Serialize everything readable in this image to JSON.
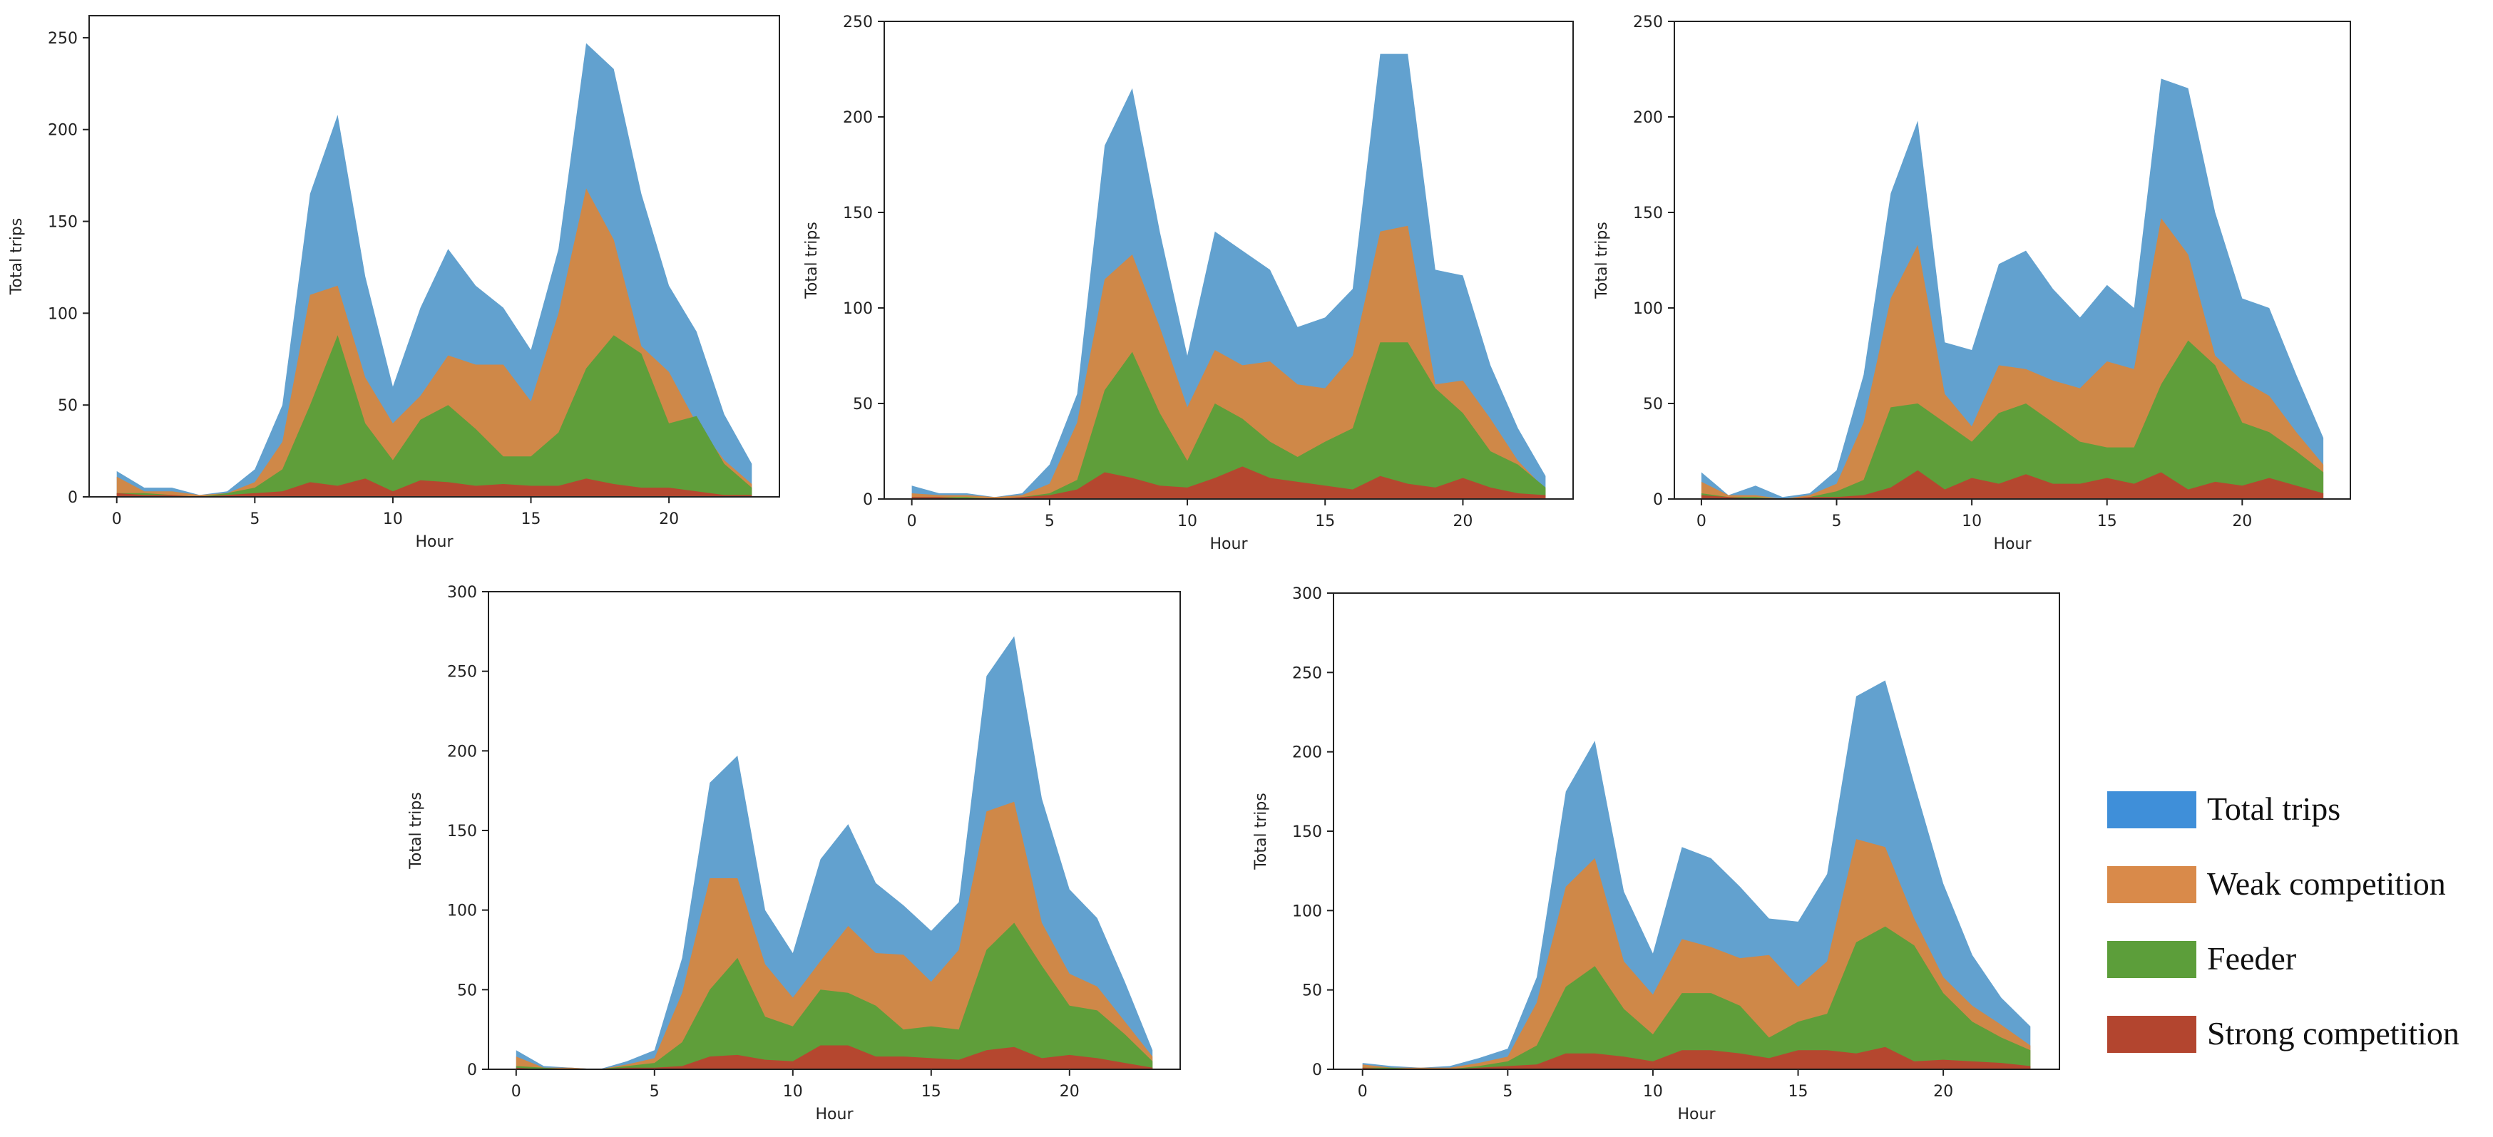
{
  "chart_data": [
    {
      "type": "area",
      "xlabel": "Hour",
      "ylabel": "Total trips",
      "x": [
        0,
        1,
        2,
        3,
        4,
        5,
        6,
        7,
        8,
        9,
        10,
        11,
        12,
        13,
        14,
        15,
        16,
        17,
        18,
        19,
        20,
        21,
        22,
        23
      ],
      "xticks": [
        0,
        5,
        10,
        15,
        20
      ],
      "yticks": [
        0,
        50,
        100,
        150,
        200,
        250
      ],
      "ylim": [
        0,
        262
      ],
      "xlim": [
        -1,
        24
      ],
      "series": [
        {
          "name": "Total trips",
          "values": [
            14,
            5,
            5,
            1,
            3,
            15,
            50,
            165,
            208,
            120,
            60,
            103,
            135,
            115,
            103,
            80,
            135,
            247,
            233,
            165,
            115,
            90,
            45,
            18
          ]
        },
        {
          "name": "Weak competition",
          "values": [
            11,
            3,
            3,
            1,
            2,
            8,
            30,
            110,
            115,
            65,
            40,
            55,
            77,
            72,
            72,
            52,
            100,
            168,
            140,
            82,
            68,
            40,
            20,
            7
          ]
        },
        {
          "name": "Feeder",
          "values": [
            2,
            2,
            1,
            0,
            2,
            5,
            15,
            50,
            88,
            40,
            20,
            42,
            50,
            37,
            22,
            22,
            35,
            70,
            88,
            78,
            40,
            44,
            18,
            5
          ]
        },
        {
          "name": "Strong competition",
          "values": [
            2,
            1,
            1,
            0,
            1,
            2,
            3,
            8,
            6,
            10,
            3,
            9,
            8,
            6,
            7,
            6,
            6,
            10,
            7,
            5,
            5,
            3,
            1,
            1
          ]
        }
      ]
    },
    {
      "type": "area",
      "xlabel": "Hour",
      "ylabel": "Total trips",
      "x": [
        0,
        1,
        2,
        3,
        4,
        5,
        6,
        7,
        8,
        9,
        10,
        11,
        12,
        13,
        14,
        15,
        16,
        17,
        18,
        19,
        20,
        21,
        22,
        23
      ],
      "xticks": [
        0,
        5,
        10,
        15,
        20
      ],
      "yticks": [
        0,
        50,
        100,
        150,
        200,
        250
      ],
      "ylim": [
        0,
        250
      ],
      "xlim": [
        -1,
        24
      ],
      "series": [
        {
          "name": "Total trips",
          "values": [
            7,
            3,
            3,
            1,
            3,
            18,
            55,
            185,
            215,
            140,
            75,
            140,
            130,
            120,
            90,
            95,
            110,
            233,
            233,
            120,
            117,
            70,
            37,
            12
          ]
        },
        {
          "name": "Weak competition",
          "values": [
            3,
            2,
            2,
            1,
            2,
            8,
            40,
            115,
            128,
            90,
            48,
            78,
            70,
            72,
            60,
            58,
            75,
            140,
            143,
            60,
            62,
            42,
            20,
            5
          ]
        },
        {
          "name": "Feeder",
          "values": [
            1,
            1,
            1,
            0,
            1,
            3,
            10,
            57,
            77,
            45,
            20,
            50,
            42,
            30,
            22,
            30,
            37,
            82,
            82,
            58,
            45,
            25,
            18,
            6
          ]
        },
        {
          "name": "Strong competition",
          "values": [
            1,
            1,
            0,
            0,
            1,
            2,
            5,
            14,
            11,
            7,
            6,
            11,
            17,
            11,
            9,
            7,
            5,
            12,
            8,
            6,
            11,
            6,
            3,
            2
          ]
        }
      ]
    },
    {
      "type": "area",
      "xlabel": "Hour",
      "ylabel": "Total trips",
      "x": [
        0,
        1,
        2,
        3,
        4,
        5,
        6,
        7,
        8,
        9,
        10,
        11,
        12,
        13,
        14,
        15,
        16,
        17,
        18,
        19,
        20,
        21,
        22,
        23
      ],
      "xticks": [
        0,
        5,
        10,
        15,
        20
      ],
      "yticks": [
        0,
        50,
        100,
        150,
        200,
        250
      ],
      "ylim": [
        0,
        250
      ],
      "xlim": [
        -1,
        24
      ],
      "series": [
        {
          "name": "Total trips",
          "values": [
            14,
            2,
            7,
            1,
            3,
            15,
            65,
            160,
            198,
            82,
            78,
            123,
            130,
            110,
            95,
            112,
            100,
            220,
            215,
            150,
            105,
            100,
            65,
            32
          ]
        },
        {
          "name": "Weak competition",
          "values": [
            9,
            2,
            2,
            0,
            2,
            8,
            40,
            105,
            133,
            55,
            38,
            70,
            68,
            62,
            58,
            72,
            68,
            147,
            128,
            75,
            62,
            54,
            35,
            18
          ]
        },
        {
          "name": "Feeder",
          "values": [
            3,
            1,
            1,
            0,
            1,
            4,
            10,
            48,
            50,
            40,
            30,
            45,
            50,
            40,
            30,
            27,
            27,
            60,
            83,
            70,
            40,
            35,
            25,
            14
          ]
        },
        {
          "name": "Strong competition",
          "values": [
            2,
            1,
            0,
            0,
            1,
            1,
            2,
            6,
            15,
            5,
            11,
            8,
            13,
            8,
            8,
            11,
            8,
            14,
            5,
            9,
            7,
            11,
            7,
            3
          ]
        }
      ]
    },
    {
      "type": "area",
      "xlabel": "Hour",
      "ylabel": "Total trips",
      "x": [
        0,
        1,
        2,
        3,
        4,
        5,
        6,
        7,
        8,
        9,
        10,
        11,
        12,
        13,
        14,
        15,
        16,
        17,
        18,
        19,
        20,
        21,
        22,
        23
      ],
      "xticks": [
        0,
        5,
        10,
        15,
        20
      ],
      "yticks": [
        0,
        50,
        100,
        150,
        200,
        250,
        300
      ],
      "ylim": [
        0,
        300
      ],
      "xlim": [
        -1,
        24
      ],
      "series": [
        {
          "name": "Total trips",
          "values": [
            12,
            2,
            1,
            0,
            5,
            12,
            70,
            180,
            197,
            100,
            73,
            132,
            154,
            117,
            103,
            87,
            105,
            247,
            272,
            170,
            113,
            95,
            55,
            12
          ]
        },
        {
          "name": "Weak competition",
          "values": [
            8,
            1,
            1,
            0,
            3,
            7,
            48,
            120,
            120,
            66,
            45,
            68,
            90,
            73,
            72,
            55,
            75,
            162,
            168,
            92,
            60,
            52,
            30,
            8
          ]
        },
        {
          "name": "Feeder",
          "values": [
            2,
            1,
            0,
            0,
            2,
            4,
            17,
            50,
            70,
            33,
            27,
            50,
            48,
            40,
            25,
            27,
            25,
            75,
            92,
            65,
            40,
            37,
            22,
            5
          ]
        },
        {
          "name": "Strong competition",
          "values": [
            1,
            0,
            0,
            0,
            1,
            1,
            2,
            8,
            9,
            6,
            5,
            15,
            15,
            8,
            8,
            7,
            6,
            12,
            14,
            7,
            9,
            7,
            4,
            1
          ]
        }
      ]
    },
    {
      "type": "area",
      "xlabel": "Hour",
      "ylabel": "Total trips",
      "x": [
        0,
        1,
        2,
        3,
        4,
        5,
        6,
        7,
        8,
        9,
        10,
        11,
        12,
        13,
        14,
        15,
        16,
        17,
        18,
        19,
        20,
        21,
        22,
        23
      ],
      "xticks": [
        0,
        5,
        10,
        15,
        20
      ],
      "yticks": [
        0,
        50,
        100,
        150,
        200,
        250,
        300
      ],
      "ylim": [
        0,
        300
      ],
      "xlim": [
        -1,
        24
      ],
      "series": [
        {
          "name": "Total trips",
          "values": [
            4,
            2,
            1,
            2,
            7,
            13,
            58,
            175,
            207,
            112,
            73,
            140,
            133,
            115,
            95,
            93,
            123,
            235,
            245,
            180,
            117,
            72,
            45,
            27
          ]
        },
        {
          "name": "Weak competition",
          "values": [
            3,
            1,
            1,
            1,
            4,
            8,
            42,
            115,
            133,
            68,
            47,
            82,
            77,
            70,
            72,
            52,
            68,
            145,
            140,
            95,
            58,
            40,
            28,
            15
          ]
        },
        {
          "name": "Feeder",
          "values": [
            1,
            1,
            0,
            0,
            2,
            5,
            15,
            52,
            65,
            38,
            22,
            48,
            48,
            40,
            20,
            30,
            35,
            80,
            90,
            78,
            48,
            30,
            20,
            12
          ]
        },
        {
          "name": "Strong competition",
          "values": [
            1,
            0,
            0,
            0,
            1,
            2,
            3,
            10,
            10,
            8,
            5,
            12,
            12,
            10,
            7,
            12,
            12,
            10,
            14,
            5,
            6,
            5,
            4,
            2
          ]
        }
      ]
    }
  ],
  "legend": {
    "items": [
      {
        "label": "Total trips",
        "color": "#3f8fd9"
      },
      {
        "label": "Weak competition",
        "color": "#d98a4a"
      },
      {
        "label": "Feeder",
        "color": "#5c9e3a"
      },
      {
        "label": "Strong competition",
        "color": "#b3452f"
      }
    ]
  },
  "colors": {
    "total": "#62a1cf",
    "weak": "#cf8848",
    "feeder": "#5f9e3a",
    "strong": "#b5472f"
  }
}
